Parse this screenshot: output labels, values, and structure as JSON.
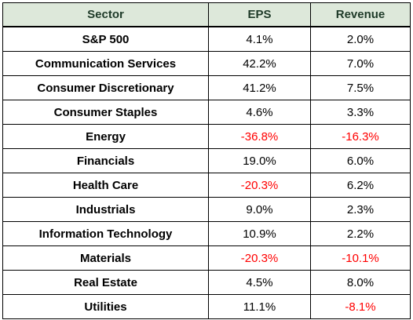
{
  "chart_data": {
    "type": "table",
    "columns": [
      "Sector",
      "EPS",
      "Revenue"
    ],
    "rows": [
      {
        "sector": "S&P 500",
        "eps": "4.1%",
        "revenue": "2.0%"
      },
      {
        "sector": "Communication Services",
        "eps": "42.2%",
        "revenue": "7.0%"
      },
      {
        "sector": "Consumer Discretionary",
        "eps": "41.2%",
        "revenue": "7.5%"
      },
      {
        "sector": "Consumer Staples",
        "eps": "4.6%",
        "revenue": "3.3%"
      },
      {
        "sector": "Energy",
        "eps": "-36.8%",
        "revenue": "-16.3%"
      },
      {
        "sector": "Financials",
        "eps": "19.0%",
        "revenue": "6.0%"
      },
      {
        "sector": "Health Care",
        "eps": "-20.3%",
        "revenue": "6.2%"
      },
      {
        "sector": "Industrials",
        "eps": "9.0%",
        "revenue": "2.3%"
      },
      {
        "sector": "Information Technology",
        "eps": "10.9%",
        "revenue": "2.2%"
      },
      {
        "sector": "Materials",
        "eps": "-20.3%",
        "revenue": "-10.1%"
      },
      {
        "sector": "Real Estate",
        "eps": "4.5%",
        "revenue": "8.0%"
      },
      {
        "sector": "Utilities",
        "eps": "11.1%",
        "revenue": "-8.1%"
      }
    ]
  },
  "colors": {
    "header_background": "#dde8da",
    "header_text": "#1e3a28",
    "negative_value": "#ff0000",
    "positive_value": "#000000",
    "border": "#000000"
  }
}
